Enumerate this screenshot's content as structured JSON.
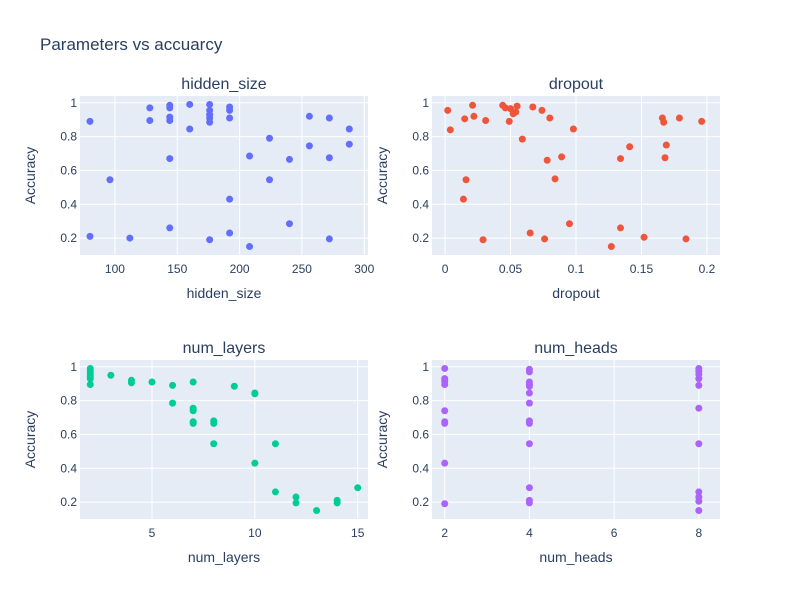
{
  "title": "Parameters vs accuarcy",
  "chart_data": [
    {
      "type": "scatter",
      "title": "hidden_size",
      "xlabel": "hidden_size",
      "ylabel": "Accuracy",
      "xlim": [
        72,
        303
      ],
      "ylim": [
        0.1,
        1.04
      ],
      "xticks": [
        100,
        150,
        200,
        250,
        300
      ],
      "yticks": [
        0.2,
        0.4,
        0.6,
        0.8,
        1
      ],
      "color": "#636efa",
      "points": [
        [
          80,
          0.89
        ],
        [
          80,
          0.21
        ],
        [
          96,
          0.545
        ],
        [
          112,
          0.2
        ],
        [
          128,
          0.97
        ],
        [
          128,
          0.895
        ],
        [
          144,
          0.985
        ],
        [
          144,
          0.97
        ],
        [
          144,
          0.915
        ],
        [
          144,
          0.895
        ],
        [
          144,
          0.67
        ],
        [
          144,
          0.26
        ],
        [
          160,
          0.99
        ],
        [
          160,
          0.845
        ],
        [
          176,
          0.99
        ],
        [
          176,
          0.955
        ],
        [
          176,
          0.93
        ],
        [
          176,
          0.91
        ],
        [
          176,
          0.885
        ],
        [
          176,
          0.19
        ],
        [
          192,
          0.975
        ],
        [
          192,
          0.955
        ],
        [
          192,
          0.91
        ],
        [
          192,
          0.43
        ],
        [
          192,
          0.23
        ],
        [
          208,
          0.685
        ],
        [
          208,
          0.15
        ],
        [
          224,
          0.79
        ],
        [
          224,
          0.545
        ],
        [
          240,
          0.665
        ],
        [
          240,
          0.285
        ],
        [
          256,
          0.92
        ],
        [
          256,
          0.745
        ],
        [
          272,
          0.91
        ],
        [
          272,
          0.675
        ],
        [
          272,
          0.195
        ],
        [
          288,
          0.845
        ],
        [
          288,
          0.755
        ]
      ]
    },
    {
      "type": "scatter",
      "title": "dropout",
      "xlabel": "dropout",
      "ylabel": "Accuracy",
      "xlim": [
        -0.01,
        0.21
      ],
      "ylim": [
        0.1,
        1.04
      ],
      "xticks": [
        0,
        0.05,
        0.1,
        0.15,
        0.2
      ],
      "yticks": [
        0.2,
        0.4,
        0.6,
        0.8,
        1
      ],
      "color": "#ef553b",
      "points": [
        [
          0.002,
          0.955
        ],
        [
          0.004,
          0.84
        ],
        [
          0.014,
          0.43
        ],
        [
          0.015,
          0.905
        ],
        [
          0.016,
          0.545
        ],
        [
          0.021,
          0.985
        ],
        [
          0.022,
          0.92
        ],
        [
          0.029,
          0.19
        ],
        [
          0.031,
          0.895
        ],
        [
          0.044,
          0.985
        ],
        [
          0.046,
          0.97
        ],
        [
          0.049,
          0.89
        ],
        [
          0.05,
          0.965
        ],
        [
          0.052,
          0.935
        ],
        [
          0.054,
          0.945
        ],
        [
          0.055,
          0.98
        ],
        [
          0.059,
          0.785
        ],
        [
          0.065,
          0.23
        ],
        [
          0.067,
          0.975
        ],
        [
          0.074,
          0.955
        ],
        [
          0.076,
          0.195
        ],
        [
          0.078,
          0.66
        ],
        [
          0.08,
          0.91
        ],
        [
          0.084,
          0.55
        ],
        [
          0.089,
          0.68
        ],
        [
          0.095,
          0.285
        ],
        [
          0.098,
          0.845
        ],
        [
          0.127,
          0.15
        ],
        [
          0.134,
          0.67
        ],
        [
          0.134,
          0.26
        ],
        [
          0.141,
          0.74
        ],
        [
          0.152,
          0.205
        ],
        [
          0.166,
          0.91
        ],
        [
          0.167,
          0.885
        ],
        [
          0.168,
          0.675
        ],
        [
          0.169,
          0.75
        ],
        [
          0.179,
          0.91
        ],
        [
          0.184,
          0.195
        ],
        [
          0.196,
          0.89
        ]
      ]
    },
    {
      "type": "scatter",
      "title": "num_layers",
      "xlabel": "num_layers",
      "ylabel": "Accuracy",
      "xlim": [
        1.5,
        15.5
      ],
      "ylim": [
        0.1,
        1.04
      ],
      "xticks": [
        5,
        10,
        15
      ],
      "yticks": [
        0.2,
        0.4,
        0.6,
        0.8,
        1
      ],
      "color": "#00cc96",
      "points": [
        [
          2,
          0.99
        ],
        [
          2,
          0.975
        ],
        [
          2,
          0.96
        ],
        [
          2,
          0.945
        ],
        [
          2,
          0.93
        ],
        [
          2,
          0.895
        ],
        [
          3,
          0.95
        ],
        [
          4,
          0.92
        ],
        [
          4,
          0.905
        ],
        [
          5,
          0.91
        ],
        [
          6,
          0.89
        ],
        [
          6,
          0.785
        ],
        [
          7,
          0.91
        ],
        [
          7,
          0.755
        ],
        [
          7,
          0.74
        ],
        [
          7,
          0.675
        ],
        [
          7,
          0.665
        ],
        [
          8,
          0.68
        ],
        [
          8,
          0.665
        ],
        [
          8,
          0.545
        ],
        [
          9,
          0.885
        ],
        [
          10,
          0.845
        ],
        [
          10,
          0.84
        ],
        [
          10,
          0.43
        ],
        [
          11,
          0.545
        ],
        [
          11,
          0.26
        ],
        [
          12,
          0.23
        ],
        [
          12,
          0.195
        ],
        [
          13,
          0.15
        ],
        [
          14,
          0.21
        ],
        [
          14,
          0.195
        ],
        [
          15,
          0.285
        ]
      ]
    },
    {
      "type": "scatter",
      "title": "num_heads",
      "xlabel": "num_heads",
      "ylabel": "Accuracy",
      "xlim": [
        1.7,
        8.5
      ],
      "ylim": [
        0.1,
        1.04
      ],
      "xticks": [
        2,
        4,
        6,
        8
      ],
      "yticks": [
        0.2,
        0.4,
        0.6,
        0.8,
        1
      ],
      "color": "#ab63fa",
      "points": [
        [
          2,
          0.99
        ],
        [
          2,
          0.93
        ],
        [
          2,
          0.915
        ],
        [
          2,
          0.895
        ],
        [
          2,
          0.74
        ],
        [
          2,
          0.675
        ],
        [
          2,
          0.665
        ],
        [
          2,
          0.43
        ],
        [
          2,
          0.19
        ],
        [
          4,
          0.985
        ],
        [
          4,
          0.97
        ],
        [
          4,
          0.91
        ],
        [
          4,
          0.895
        ],
        [
          4,
          0.885
        ],
        [
          4,
          0.845
        ],
        [
          4,
          0.785
        ],
        [
          4,
          0.68
        ],
        [
          4,
          0.665
        ],
        [
          4,
          0.545
        ],
        [
          4,
          0.285
        ],
        [
          4,
          0.21
        ],
        [
          4,
          0.195
        ],
        [
          8,
          0.99
        ],
        [
          8,
          0.975
        ],
        [
          8,
          0.955
        ],
        [
          8,
          0.93
        ],
        [
          8,
          0.89
        ],
        [
          8,
          0.755
        ],
        [
          8,
          0.545
        ],
        [
          8,
          0.26
        ],
        [
          8,
          0.23
        ],
        [
          8,
          0.205
        ],
        [
          8,
          0.15
        ]
      ]
    }
  ]
}
